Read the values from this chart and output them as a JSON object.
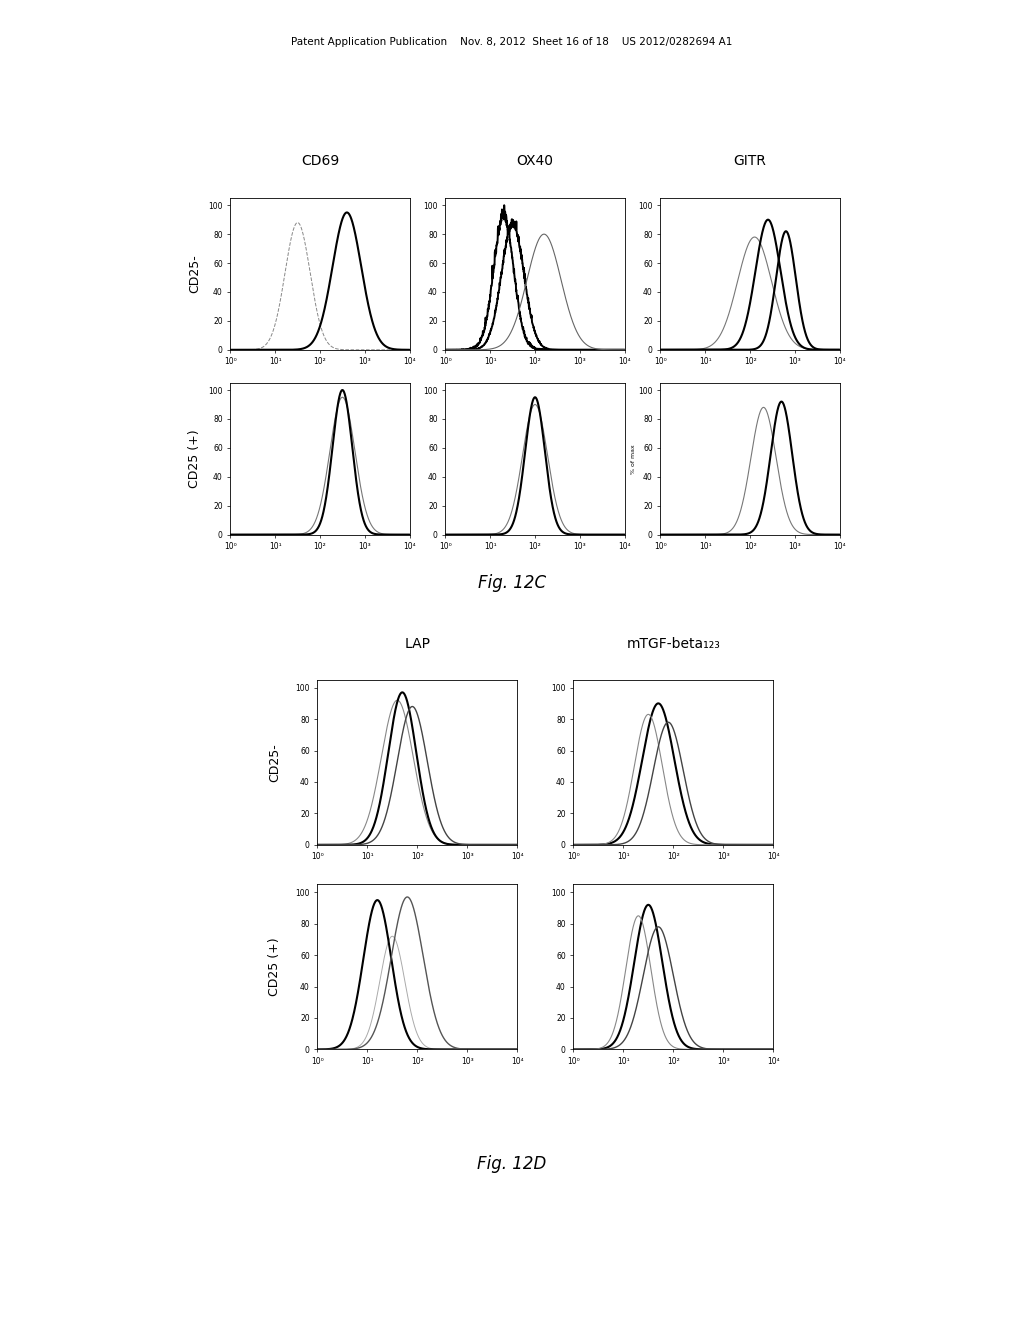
{
  "header_text": "Patent Application Publication    Nov. 8, 2012  Sheet 16 of 18    US 2012/0282694 A1",
  "fig12c_label": "Fig. 12C",
  "fig12d_label": "Fig. 12D",
  "fig12c_col_labels": [
    "CD69",
    "OX40",
    "GITR"
  ],
  "fig12d_col_labels": [
    "LAP",
    "mTGF-beta₁₂₃"
  ],
  "row_labels_12c": [
    "CD25-",
    "CD25 (+)"
  ],
  "row_labels_12d": [
    "CD25-",
    "CD25 (+)"
  ],
  "background_color": "#ffffff"
}
